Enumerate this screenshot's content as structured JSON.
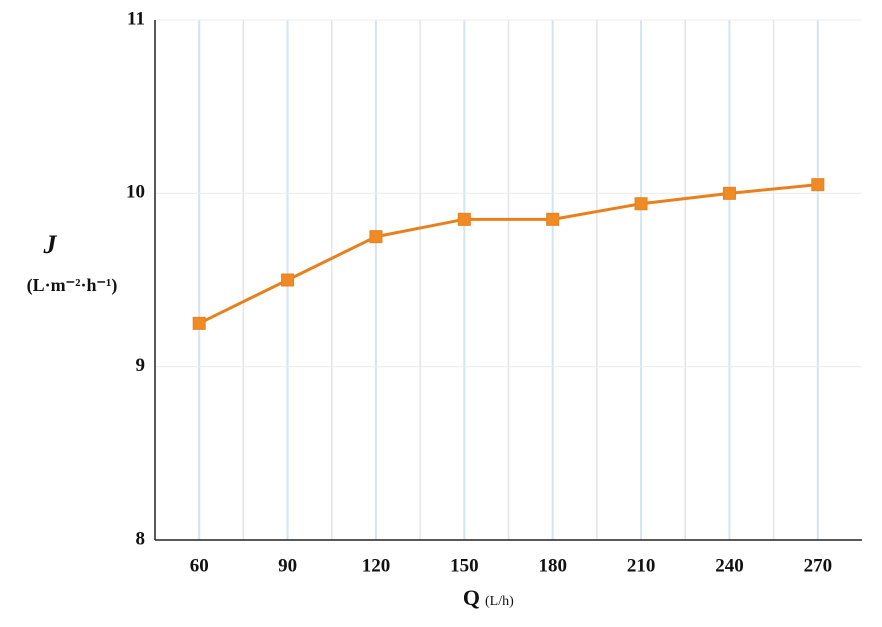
{
  "chart_data": {
    "type": "line",
    "y_title": "J",
    "y_unit": "(L·m⁻²·h⁻¹)",
    "x_title": "Q",
    "x_unit": "(L/h)",
    "x": [
      60,
      90,
      120,
      150,
      180,
      210,
      240,
      270
    ],
    "series": [
      {
        "color": "#e8801e",
        "marker_color": "#f08a24",
        "values": [
          9.25,
          9.5,
          9.75,
          9.85,
          9.85,
          9.94,
          10.0,
          10.05
        ]
      }
    ],
    "xlim": [
      45,
      285
    ],
    "xticks": [
      60,
      90,
      120,
      150,
      180,
      210,
      240,
      270
    ],
    "xminorticks": [
      75,
      105,
      135,
      165,
      195,
      225,
      255
    ],
    "ylim": [
      8,
      11
    ],
    "yticks": [
      8,
      9,
      10,
      11
    ],
    "grid": true
  }
}
